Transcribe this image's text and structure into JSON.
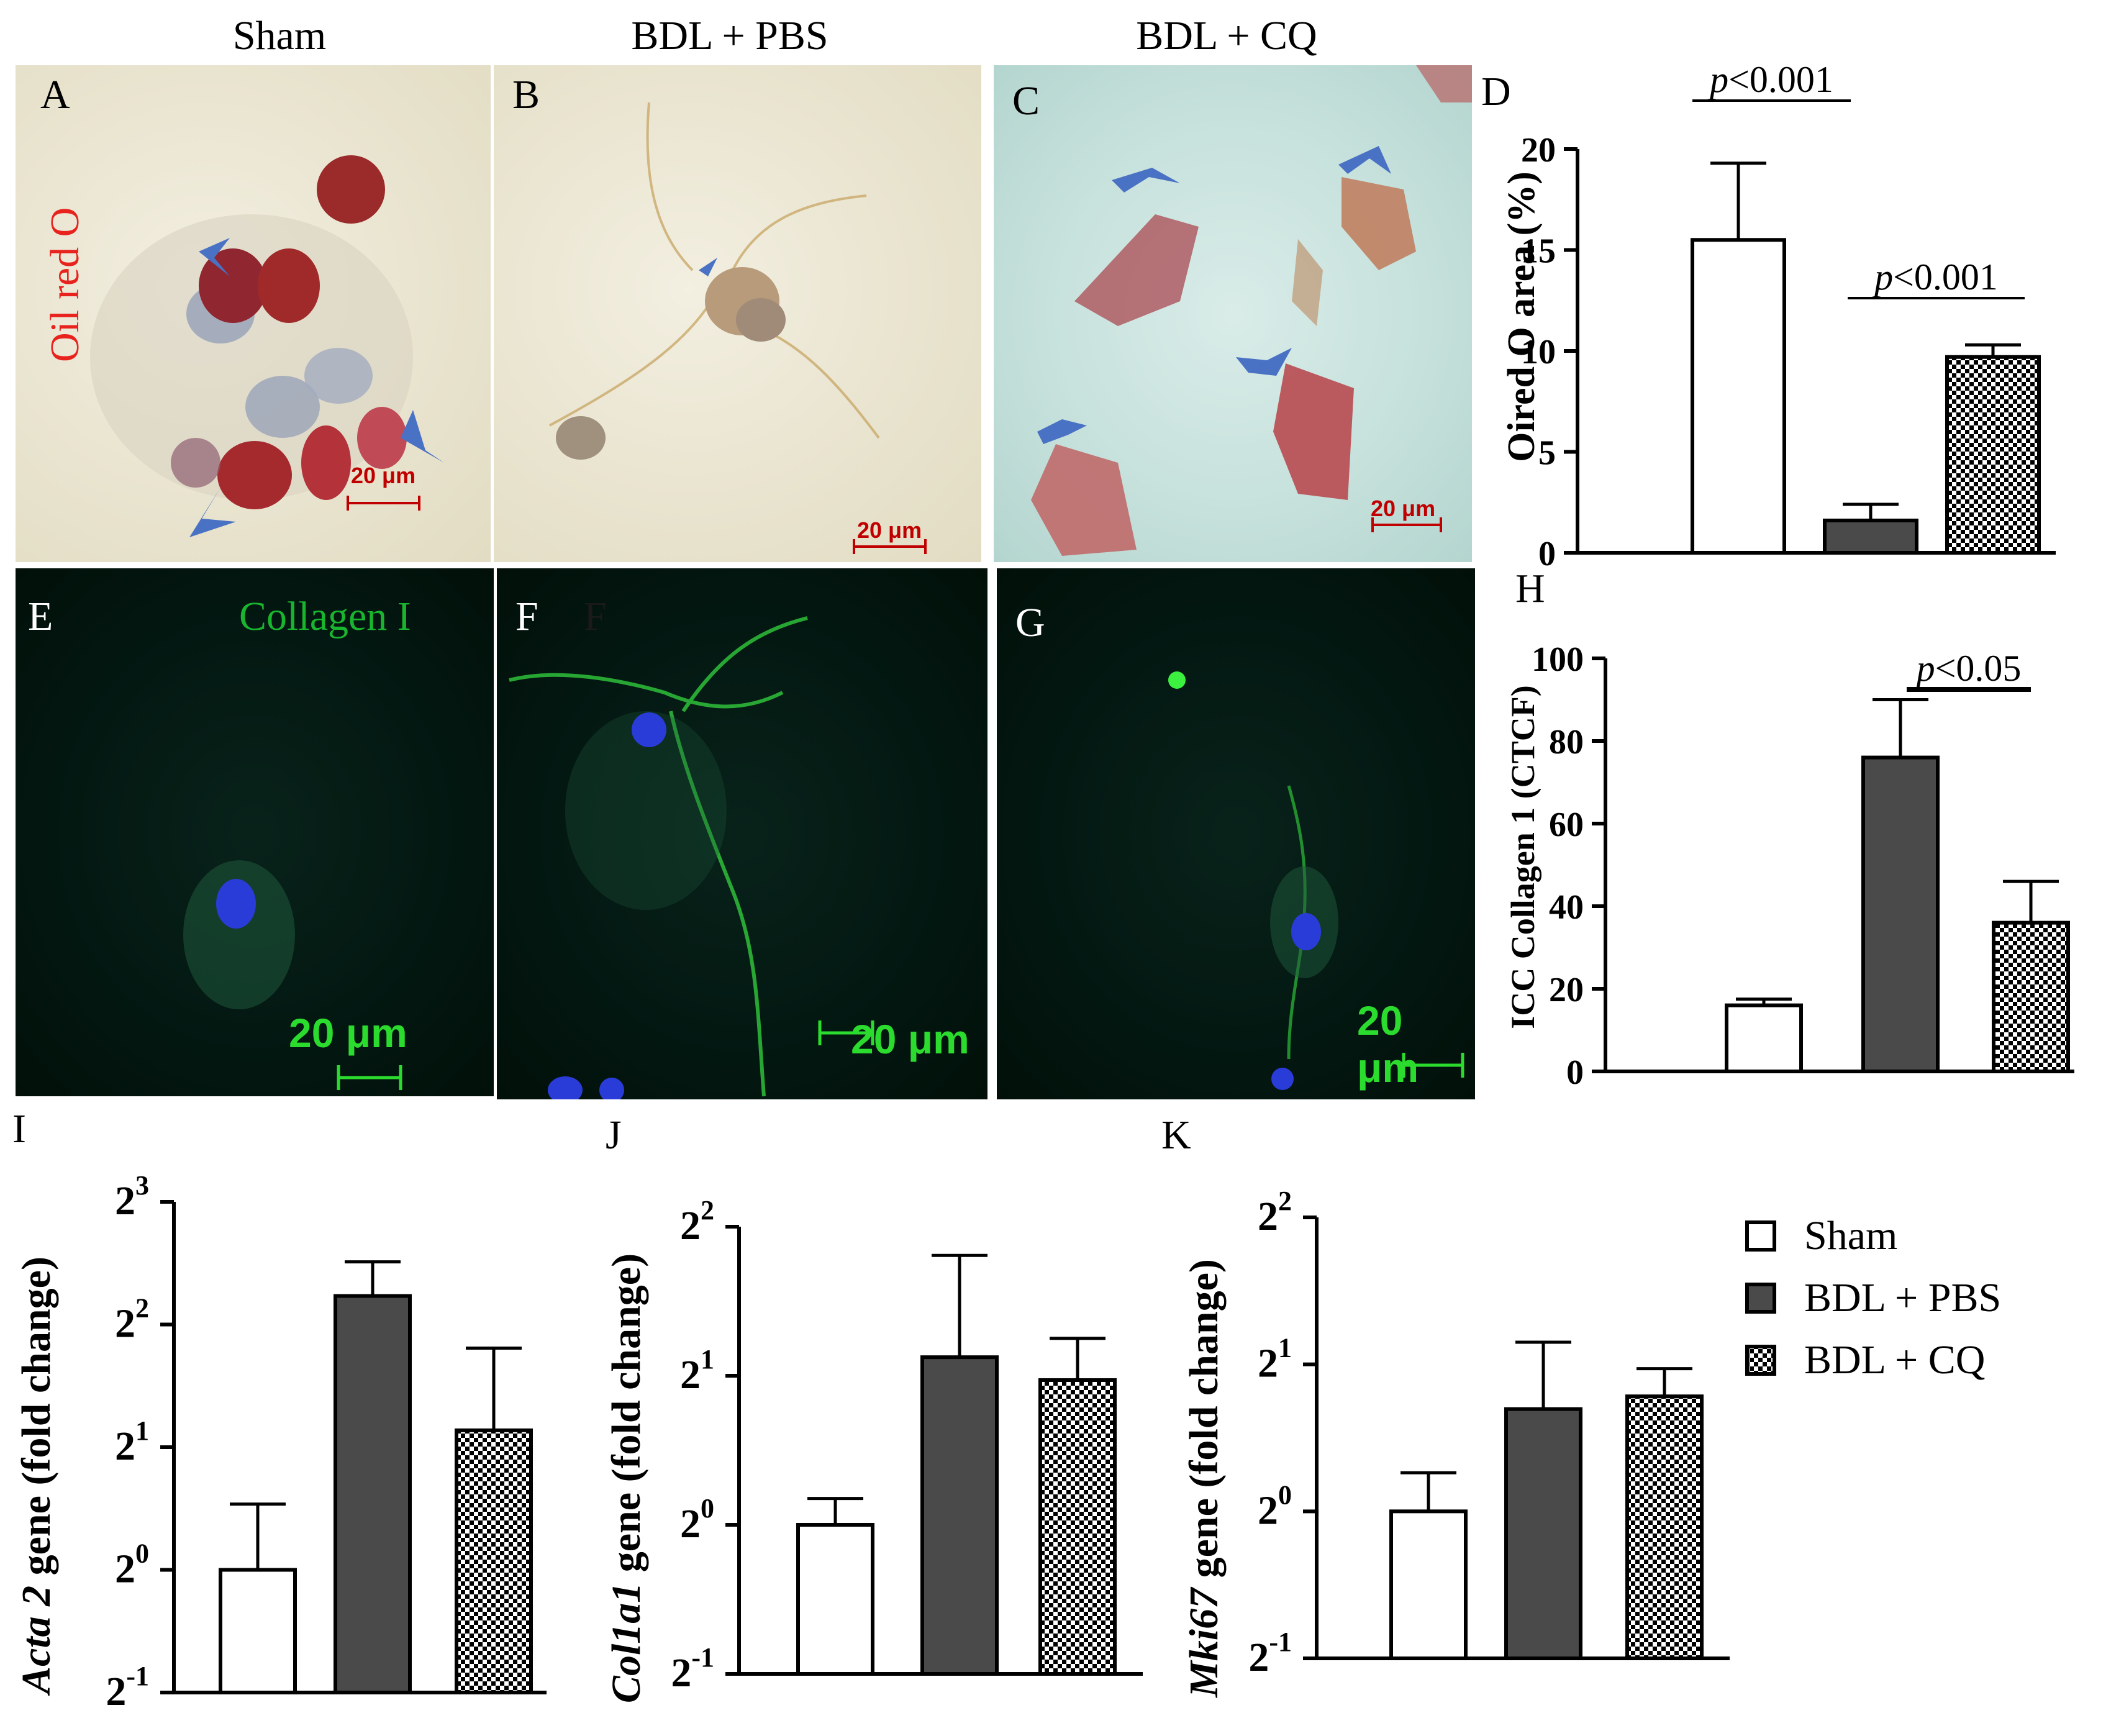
{
  "columns": {
    "sham": "Sham",
    "bdl_pbs": "BDL + PBS",
    "bdl_cq": "BDL + CQ"
  },
  "panel_letters": {
    "A": "A",
    "B": "B",
    "C": "C",
    "D": "D",
    "E": "E",
    "F": "F",
    "G": "G",
    "H": "H",
    "I": "I",
    "J": "J",
    "K": "K",
    "F_dup": "F"
  },
  "stain_labels": {
    "oil_red_o": "Oil red O",
    "collagen": "Collagen I"
  },
  "scale_bars": {
    "small": "20 μm",
    "large": "20 μm"
  },
  "colors": {
    "oil_red": "#e8221c",
    "collagen_green": "#19b52e",
    "scale_green": "#2bdc2e",
    "scale_red": "#c00000",
    "arrow_blue": "#4a72c4",
    "bar_dark": "#4a4a4a"
  },
  "legend": {
    "items": [
      {
        "label": "Sham",
        "fill": "white"
      },
      {
        "label": "BDL + PBS",
        "fill": "dark"
      },
      {
        "label": "BDL + CQ",
        "fill": "checker"
      }
    ]
  },
  "chart_data": [
    {
      "panel": "D",
      "type": "bar",
      "categories": [
        "Sham",
        "BDL + PBS",
        "BDL + CQ"
      ],
      "values": [
        15.5,
        1.6,
        9.7
      ],
      "errors": [
        3.8,
        0.8,
        0.6
      ],
      "ylabel": "Oired O area (%)",
      "ylim": [
        0,
        20
      ],
      "yticks": [
        "0",
        "5",
        "10",
        "15",
        "20"
      ],
      "annotations": [
        {
          "text": "p<0.001",
          "from": 0,
          "to": 1
        },
        {
          "text": "p<0.001",
          "from": 1,
          "to": 2
        }
      ]
    },
    {
      "panel": "H",
      "type": "bar",
      "categories": [
        "Sham",
        "BDL + PBS",
        "BDL + CQ"
      ],
      "values": [
        16,
        76,
        36
      ],
      "errors": [
        1.5,
        14,
        10
      ],
      "ylabel": "ICC Collagen 1 (CTCF)",
      "ylim": [
        0,
        100
      ],
      "yticks": [
        "0",
        "20",
        "40",
        "60",
        "80",
        "100"
      ],
      "annotations": [
        {
          "text": "p<0.05",
          "from": 1,
          "to": 2
        }
      ]
    },
    {
      "panel": "I",
      "type": "bar",
      "scale": "log2",
      "categories": [
        "Sham",
        "BDL + PBS",
        "BDL + CQ"
      ],
      "values": [
        1.0,
        4.7,
        2.2
      ],
      "errors": [
        0.45,
        1.0,
        1.3
      ],
      "ylabel_gene": "Acta 2",
      "ylabel_rest": " gene (fold change)",
      "ylim": [
        0.5,
        8
      ],
      "yticks": [
        {
          "base": "2",
          "exp": "-1"
        },
        {
          "base": "2",
          "exp": "0"
        },
        {
          "base": "2",
          "exp": "1"
        },
        {
          "base": "2",
          "exp": "2"
        },
        {
          "base": "2",
          "exp": "3"
        }
      ]
    },
    {
      "panel": "J",
      "type": "bar",
      "scale": "log2",
      "categories": [
        "Sham",
        "BDL + PBS",
        "BDL + CQ"
      ],
      "values": [
        1.0,
        2.18,
        1.96
      ],
      "errors": [
        0.13,
        1.32,
        0.42
      ],
      "ylabel_gene": "Col1a1",
      "ylabel_rest": " gene (fold change)",
      "ylim": [
        0.5,
        4
      ],
      "yticks": [
        {
          "base": "2",
          "exp": "-1"
        },
        {
          "base": "2",
          "exp": "0"
        },
        {
          "base": "2",
          "exp": "1"
        },
        {
          "base": "2",
          "exp": "2"
        }
      ]
    },
    {
      "panel": "K",
      "type": "bar",
      "scale": "log2",
      "categories": [
        "Sham",
        "BDL + PBS",
        "BDL + CQ"
      ],
      "values": [
        1.0,
        1.62,
        1.72
      ],
      "errors": [
        0.2,
        0.6,
        0.24
      ],
      "ylabel_gene": "Mki67",
      "ylabel_rest": " gene (fold change)",
      "ylim": [
        0.5,
        4
      ],
      "yticks": [
        {
          "base": "2",
          "exp": "-1"
        },
        {
          "base": "2",
          "exp": "0"
        },
        {
          "base": "2",
          "exp": "1"
        },
        {
          "base": "2",
          "exp": "2"
        }
      ]
    }
  ]
}
